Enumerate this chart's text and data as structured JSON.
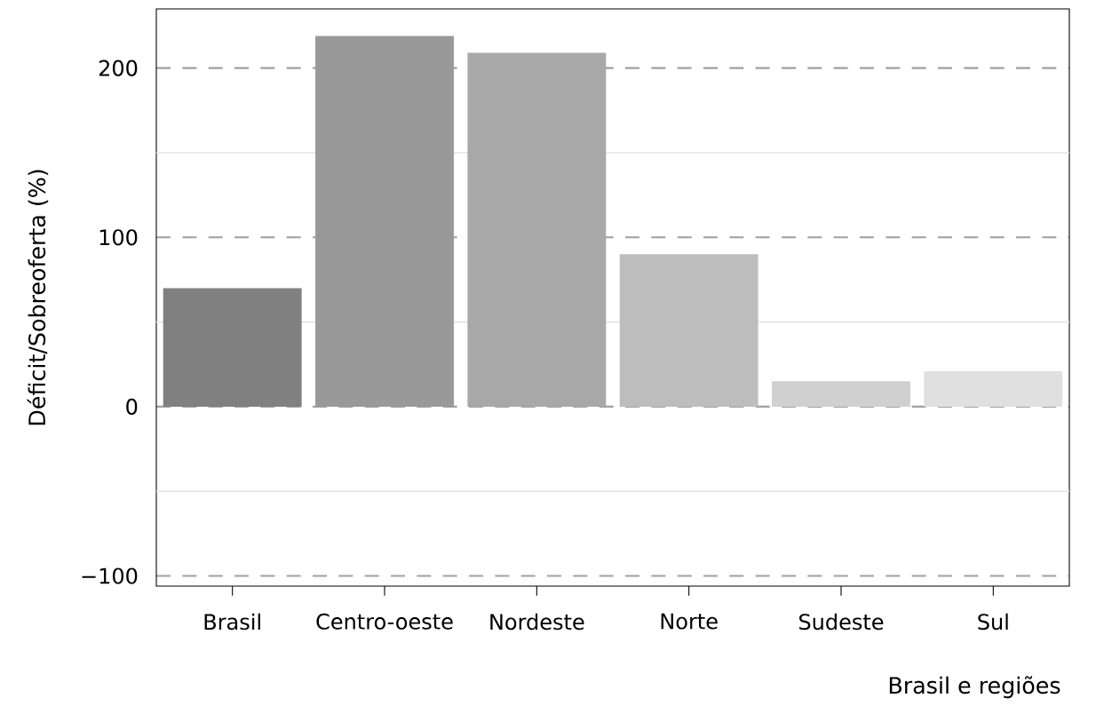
{
  "chart_data": {
    "type": "bar",
    "categories": [
      "Brasil",
      "Centro-oeste",
      "Nordeste",
      "Norte",
      "Sudeste",
      "Sul"
    ],
    "values": [
      70,
      219,
      209,
      90,
      15,
      21
    ],
    "colors": [
      "#808080",
      "#999999",
      "#a8a8a8",
      "#bdbdbd",
      "#d0d0d0",
      "#e0e0e0"
    ],
    "xlabel": "Brasil e regiões",
    "ylabel": "Déficit/Sobreoferta (%)",
    "ylim": [
      -106,
      235
    ],
    "yticks": [
      {
        "value": -100,
        "label": "−100"
      },
      {
        "value": 0,
        "label": "0"
      },
      {
        "value": 100,
        "label": "100"
      },
      {
        "value": 200,
        "label": "200"
      }
    ],
    "grid": "y"
  }
}
